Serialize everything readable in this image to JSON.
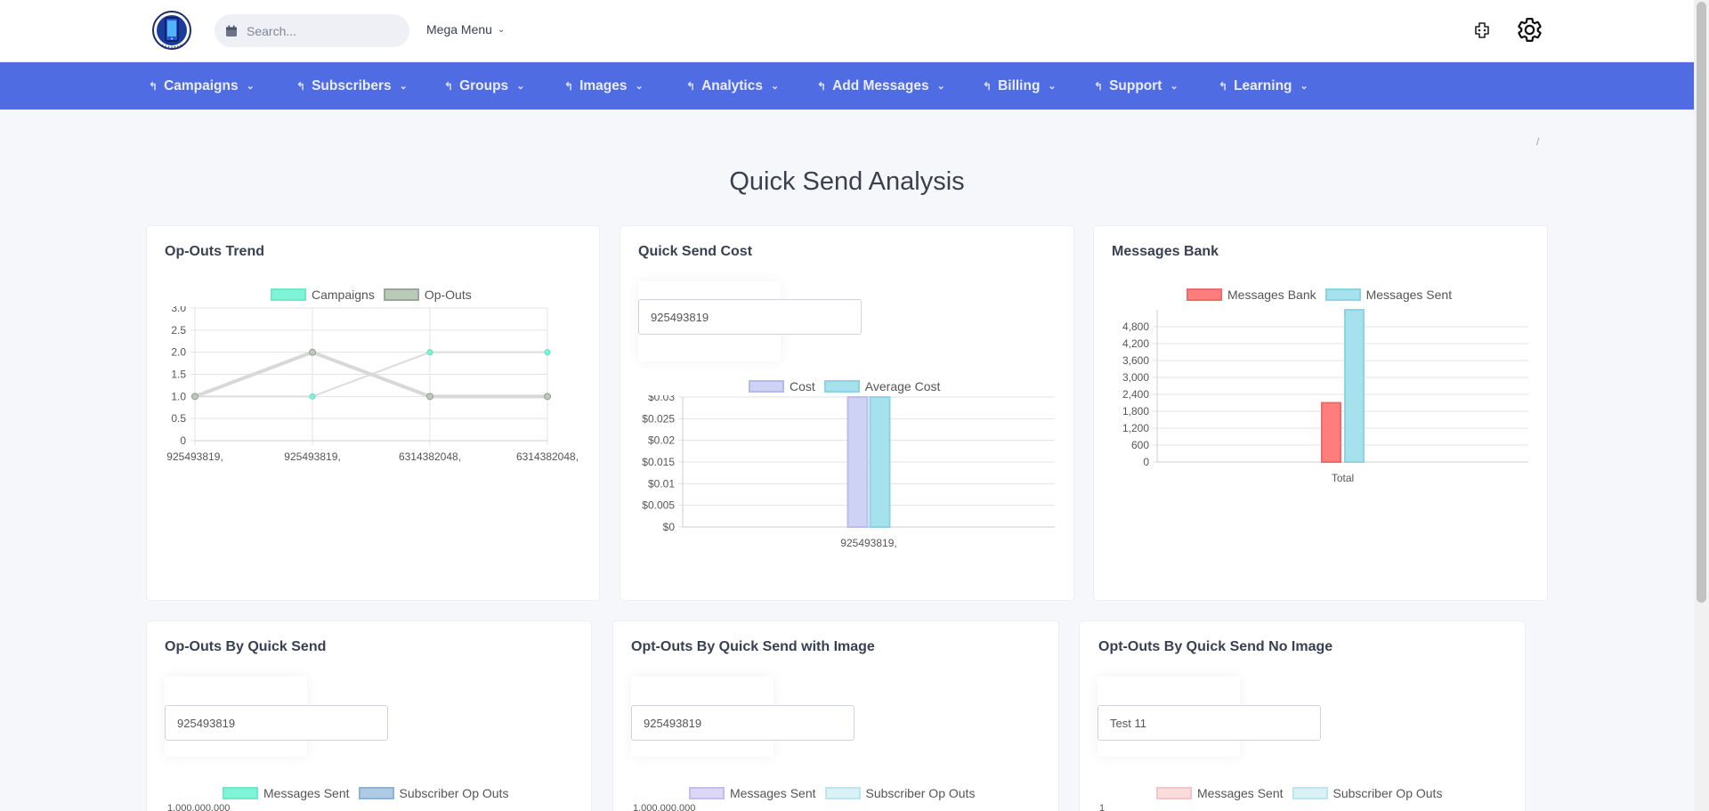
{
  "header": {
    "search_placeholder": "Search...",
    "mega_menu": "Mega Menu"
  },
  "nav": {
    "items": [
      {
        "label": "Campaigns"
      },
      {
        "label": "Subscribers"
      },
      {
        "label": "Groups"
      },
      {
        "label": "Images"
      },
      {
        "label": "Analytics"
      },
      {
        "label": "Add Messages"
      },
      {
        "label": "Billing"
      },
      {
        "label": "Support"
      },
      {
        "label": "Learning"
      }
    ]
  },
  "breadcrumb": "/",
  "page_title": "Quick Send Analysis",
  "colors": {
    "nav_bg": "#4f6ce3",
    "campaigns": "#7ff4d6",
    "opouts": "#b9cbb7",
    "cost": "#ced2f4",
    "avg_cost": "#a6e2ee",
    "msg_bank": "#ff7d7d",
    "msg_sent": "#a6e2ee"
  },
  "cards": {
    "opouts_trend": {
      "title": "Op-Outs Trend"
    },
    "quick_send_cost": {
      "title": "Quick Send Cost",
      "select_value": "925493819"
    },
    "messages_bank": {
      "title": "Messages Bank"
    },
    "opouts_by_qs": {
      "title": "Op-Outs By Quick Send",
      "select_value": "925493819"
    },
    "opouts_qs_image": {
      "title": "Opt-Outs By Quick Send with Image",
      "select_value": "925493819"
    },
    "opouts_qs_noimage": {
      "title": "Opt-Outs By Quick Send No Image",
      "select_value": "Test 11"
    }
  },
  "chart_data": [
    {
      "type": "line",
      "legend": [
        "Campaigns",
        "Op-Outs"
      ],
      "x": [
        "925493819,",
        "925493819,",
        "6314382048,",
        "6314382048,"
      ],
      "series": [
        {
          "name": "Campaigns",
          "values": [
            1,
            1,
            2,
            2
          ]
        },
        {
          "name": "Op-Outs",
          "values": [
            1,
            2,
            1,
            1
          ]
        }
      ],
      "ylim": [
        0,
        3
      ],
      "yticks": [
        "0",
        "0.5",
        "1.0",
        "1.5",
        "2.0",
        "2.5",
        "3.0"
      ],
      "grid": true,
      "legend_position": "top"
    },
    {
      "type": "bar",
      "legend": [
        "Cost",
        "Average Cost"
      ],
      "categories": [
        "925493819,"
      ],
      "series": [
        {
          "name": "Cost",
          "values": [
            0.03
          ]
        },
        {
          "name": "Average Cost",
          "values": [
            0.03
          ]
        }
      ],
      "ylim": [
        0,
        0.03
      ],
      "yticks": [
        "$0",
        "$0.005",
        "$0.01",
        "$0.015",
        "$0.02",
        "$0.025",
        "$0.03"
      ],
      "grid": true,
      "legend_position": "top"
    },
    {
      "type": "bar",
      "legend": [
        "Messages Bank",
        "Messages Sent"
      ],
      "categories": [
        "Total"
      ],
      "series": [
        {
          "name": "Messages Bank",
          "values": [
            2100
          ]
        },
        {
          "name": "Messages Sent",
          "values": [
            5400
          ]
        }
      ],
      "ylim": [
        0,
        5400
      ],
      "yticks": [
        "0",
        "600",
        "1,200",
        "1,800",
        "2,400",
        "3,000",
        "3,600",
        "4,200",
        "4,800"
      ],
      "grid": true,
      "legend_position": "top"
    },
    {
      "type": "bar",
      "legend": [
        "Messages Sent",
        "Subscriber Op Outs"
      ],
      "yticks": [
        "1,000,000,000"
      ],
      "legend_position": "top"
    },
    {
      "type": "bar",
      "legend": [
        "Messages Sent",
        "Subscriber Op Outs"
      ],
      "yticks": [
        "1,000,000,000"
      ],
      "legend_position": "top"
    },
    {
      "type": "bar",
      "legend": [
        "Messages Sent",
        "Subscriber Op Outs"
      ],
      "yticks": [
        "1"
      ],
      "legend_position": "top"
    }
  ]
}
